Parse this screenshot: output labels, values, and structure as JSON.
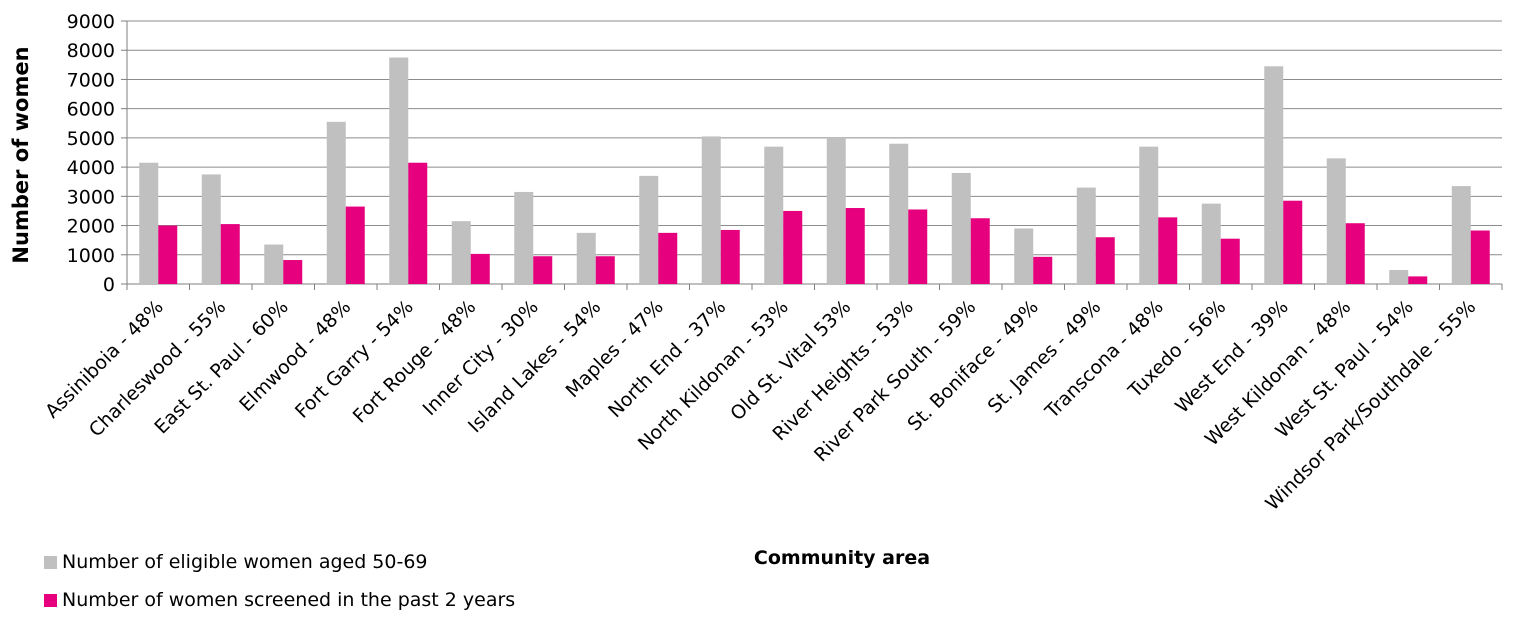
{
  "chart_data": {
    "type": "bar",
    "ylabel": "Number of women",
    "xlabel": "Community area",
    "ylim": [
      0,
      9000
    ],
    "yticks": [
      0,
      1000,
      2000,
      3000,
      4000,
      5000,
      6000,
      7000,
      8000,
      9000
    ],
    "grid": true,
    "legend_position": "bottom-left",
    "categories": [
      "Assiniboia - 48%",
      "Charleswood - 55%",
      "East St. Paul - 60%",
      "Elmwood - 48%",
      "Fort Garry - 54%",
      "Fort Rouge - 48%",
      "Inner City - 30%",
      "Island Lakes - 54%",
      "Maples - 47%",
      "North End - 37%",
      "North Kildonan - 53%",
      "Old St. Vital 53%",
      "River Heights - 53%",
      "River Park South - 59%",
      "St. Boniface - 49%",
      "St. James - 49%",
      "Transcona - 48%",
      "Tuxedo - 56%",
      "West End - 39%",
      "West Kildonan - 48%",
      "West St. Paul - 54%",
      "Windsor Park/Southdale - 55%"
    ],
    "series": [
      {
        "name": "Number of eligible women aged 50-69",
        "color": "#c0c0c0",
        "values": [
          4150,
          3750,
          1350,
          5550,
          7750,
          2150,
          3150,
          1750,
          3700,
          5050,
          4700,
          5000,
          4800,
          3800,
          1900,
          3300,
          4700,
          2750,
          7450,
          4300,
          480,
          3350
        ]
      },
      {
        "name": "Number of women screened in the past 2 years",
        "color": "#e6007e",
        "values": [
          2000,
          2050,
          820,
          2650,
          4150,
          1030,
          950,
          950,
          1750,
          1850,
          2500,
          2600,
          2550,
          2250,
          930,
          1600,
          2280,
          1550,
          2850,
          2080,
          260,
          1830
        ]
      }
    ]
  }
}
